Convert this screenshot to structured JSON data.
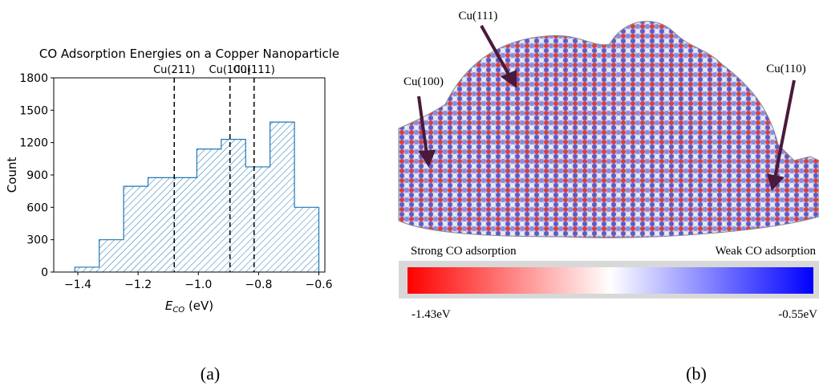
{
  "chart_data": {
    "type": "histogram",
    "title": "CO Adsorption Energies on a Copper Nanoparticle",
    "xlabel": [
      "E",
      "CO",
      " (eV)"
    ],
    "ylabel": "Count",
    "bins": [
      -1.41,
      -1.329,
      -1.248,
      -1.167,
      -1.086,
      -1.005,
      -0.924,
      -0.843,
      -0.762,
      -0.681,
      -0.6
    ],
    "values": [
      45,
      300,
      795,
      875,
      875,
      1140,
      1230,
      975,
      1390,
      600
    ],
    "color": "#1f77b4",
    "hatch": true,
    "xlim": [
      -1.48,
      -0.58
    ],
    "ylim": [
      0,
      1800
    ],
    "xticks": [
      {
        "value": -1.4,
        "label": "−1.4"
      },
      {
        "value": -1.2,
        "label": "−1.2"
      },
      {
        "value": -1,
        "label": "−1.0"
      },
      {
        "value": -0.8,
        "label": "−0.8"
      },
      {
        "value": -0.6,
        "label": "−0.6"
      }
    ],
    "yticks": [
      0,
      300,
      600,
      900,
      1200,
      1500,
      1800
    ],
    "reference_lines": [
      {
        "label": "Cu(211)",
        "value": -1.08
      },
      {
        "label": "Cu(100)",
        "value": -0.895
      },
      {
        "label": "Cu(111)",
        "value": -0.815
      }
    ]
  },
  "panel_b": {
    "facet_labels": [
      "Cu(111)",
      "Cu(100)",
      "Cu(110)"
    ],
    "colorbar": {
      "left_label": "Strong CO adsorption",
      "right_label": "Weak CO adsorption",
      "min_label": "-1.43eV",
      "max_label": "-0.55eV"
    }
  },
  "captions": [
    "(a)",
    "(b)"
  ]
}
